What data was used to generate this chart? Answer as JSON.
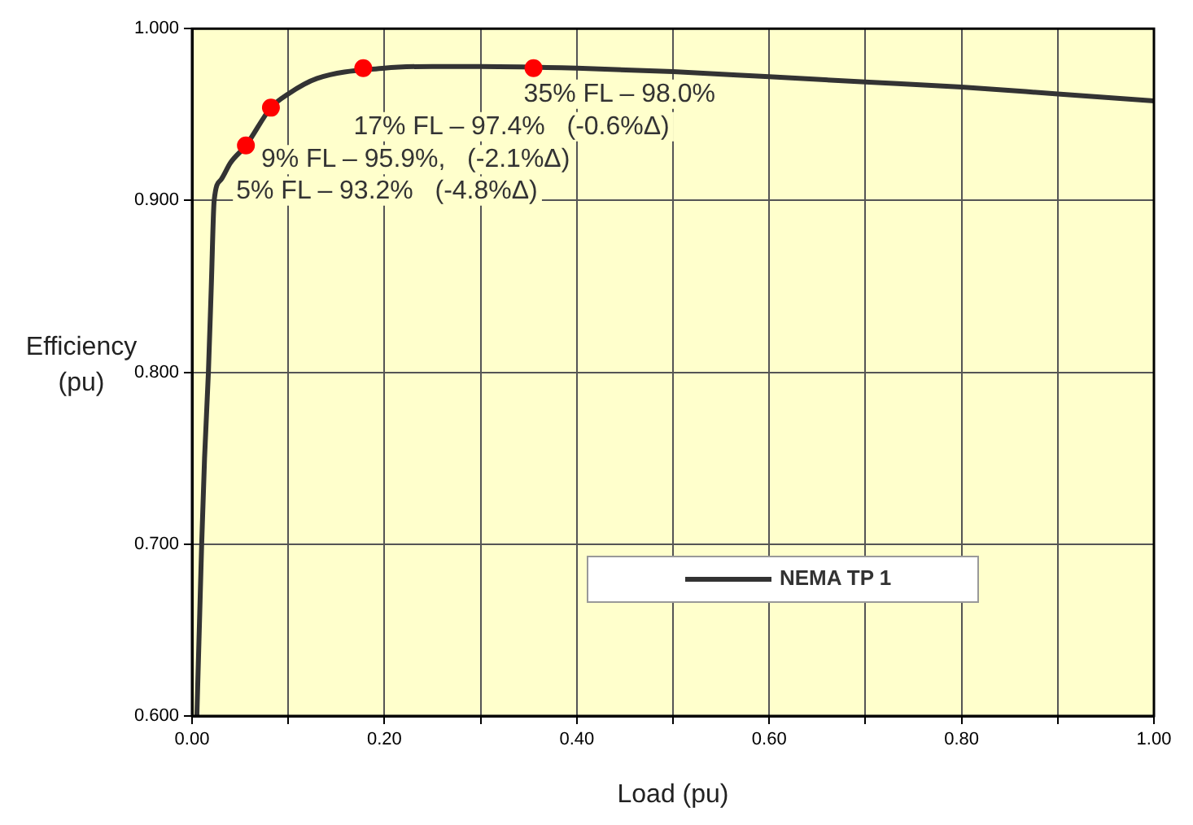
{
  "chart_data": {
    "type": "line",
    "xlabel": "Load (pu)",
    "ylabel": "Efficiency (pu)",
    "xlim": [
      0,
      1
    ],
    "ylim": [
      0.6,
      1
    ],
    "xticks": [
      {
        "value": 0,
        "label": "0.00"
      },
      {
        "value": 0.1,
        "label": null
      },
      {
        "value": 0.2,
        "label": "0.20"
      },
      {
        "value": 0.3,
        "label": null
      },
      {
        "value": 0.4,
        "label": "0.40"
      },
      {
        "value": 0.5,
        "label": null
      },
      {
        "value": 0.6,
        "label": "0.60"
      },
      {
        "value": 0.7,
        "label": null
      },
      {
        "value": 0.8,
        "label": "0.80"
      },
      {
        "value": 0.9,
        "label": null
      },
      {
        "value": 1,
        "label": "1.00"
      }
    ],
    "yticks": [
      {
        "value": 0.6,
        "label": "0.600"
      },
      {
        "value": 0.7,
        "label": "0.700"
      },
      {
        "value": 0.8,
        "label": "0.800"
      },
      {
        "value": 0.9,
        "label": "0.900"
      },
      {
        "value": 1,
        "label": "1.000"
      }
    ],
    "grid": true,
    "legend": "bottom right",
    "marker": "none",
    "line_style": "solid",
    "series": [
      {
        "name": "NEMA TP 1",
        "color": "#333333",
        "x": [
          0.005,
          0.008,
          0.01,
          0.013,
          0.017,
          0.02,
          0.023,
          0.03,
          0.04,
          0.056,
          0.082,
          0.1,
          0.13,
          0.2,
          0.25,
          0.3,
          0.4,
          0.5,
          0.6,
          0.7,
          0.8,
          0.9,
          1.0
        ],
        "values": [
          0.6,
          0.66,
          0.7,
          0.75,
          0.8,
          0.85,
          0.9,
          0.912,
          0.922,
          0.932,
          0.954,
          0.962,
          0.971,
          0.977,
          0.978,
          0.978,
          0.977,
          0.975,
          0.972,
          0.969,
          0.966,
          0.962,
          0.958
        ]
      },
      {
        "type": "scatter",
        "marker": "circle",
        "color": "#ff0000",
        "x": [
          0.056,
          0.082,
          0.178,
          0.355
        ],
        "values": [
          0.932,
          0.954,
          0.977,
          0.977
        ]
      }
    ],
    "annotations": [
      {
        "text": "35% FL – 98.0%",
        "x": 0.355,
        "y": 0.977
      },
      {
        "text": "17% FL – 97.4%   (-0.6%Δ)",
        "x": 0.178,
        "y": 0.977
      },
      {
        "text": "9% FL – 95.9%,   (-2.1%Δ)",
        "x": 0.082,
        "y": 0.954
      },
      {
        "text": "5% FL – 93.2%   (-4.8%Δ)",
        "x": 0.056,
        "y": 0.932
      }
    ]
  }
}
